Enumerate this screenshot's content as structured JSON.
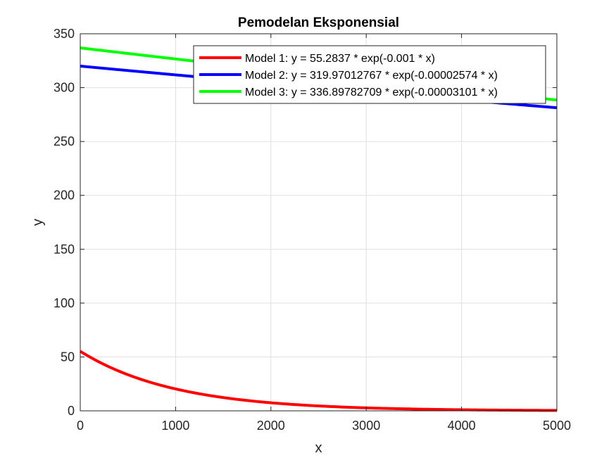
{
  "figure": {
    "background": "#ffffff"
  },
  "chart_data": {
    "type": "line",
    "title": "Pemodelan Eksponensial",
    "xlabel": "x",
    "ylabel": "y",
    "xlim": [
      0,
      5000
    ],
    "ylim": [
      0,
      350
    ],
    "xticks": [
      0,
      1000,
      2000,
      3000,
      4000,
      5000
    ],
    "yticks": [
      0,
      50,
      100,
      150,
      200,
      250,
      300,
      350
    ],
    "grid": true,
    "legend_position": "top-right",
    "series": [
      {
        "name": "Model 1: y = 55.2837 * exp(-0.001 * x)",
        "color": "#ff0000",
        "a": 55.2837,
        "b": -0.001
      },
      {
        "name": "Model 2: y = 319.97012767 * exp(-0.00002574 * x)",
        "color": "#0000ff",
        "a": 319.97012767,
        "b": -2.574e-05
      },
      {
        "name": "Model 3: y = 336.89782709 * exp(-0.00003101 * x)",
        "color": "#00ff00",
        "a": 336.89782709,
        "b": -3.101e-05
      }
    ]
  }
}
